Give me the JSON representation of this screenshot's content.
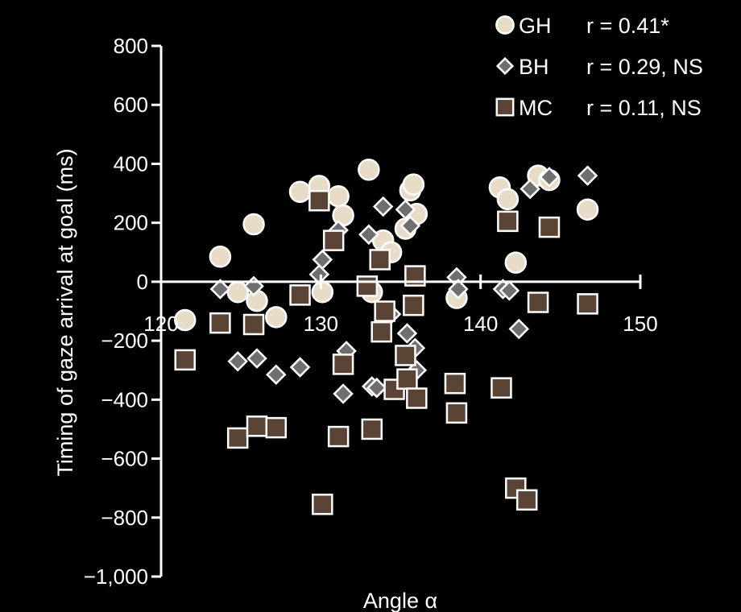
{
  "chart_data": {
    "type": "scatter",
    "xlabel": "Angle α",
    "ylabel": "Timing of gaze arrival at goal (ms)",
    "xlim": [
      120,
      150
    ],
    "ylim": [
      -1000,
      800
    ],
    "x_ticks": [
      120,
      130,
      140,
      150
    ],
    "x_tick_labels": [
      "120",
      "130",
      "140",
      "150"
    ],
    "y_ticks": [
      -1000,
      -800,
      -600,
      -400,
      -200,
      0,
      200,
      400,
      600,
      800
    ],
    "y_tick_labels": [
      "−1,000",
      "−800",
      "−600",
      "−400",
      "−200",
      "0",
      "200",
      "400",
      "600",
      "800"
    ],
    "legend_position": "top-right",
    "series": [
      {
        "name": "GH",
        "marker": "circle",
        "fill": "#e8dcc8",
        "stat": "r = 0.41*",
        "points": [
          [
            121.5,
            -130
          ],
          [
            123.7,
            85
          ],
          [
            124.8,
            -35
          ],
          [
            125.8,
            195
          ],
          [
            126.0,
            -65
          ],
          [
            127.2,
            -120
          ],
          [
            128.7,
            305
          ],
          [
            129.9,
            325
          ],
          [
            130.1,
            -35
          ],
          [
            131.1,
            290
          ],
          [
            131.4,
            225
          ],
          [
            133.0,
            380
          ],
          [
            133.2,
            -35
          ],
          [
            133.9,
            140
          ],
          [
            134.4,
            100
          ],
          [
            135.3,
            180
          ],
          [
            135.6,
            310
          ],
          [
            135.8,
            330
          ],
          [
            136.0,
            230
          ],
          [
            138.5,
            -55
          ],
          [
            141.2,
            320
          ],
          [
            141.7,
            280
          ],
          [
            142.2,
            65
          ],
          [
            143.6,
            360
          ],
          [
            144.3,
            345
          ],
          [
            146.7,
            245
          ]
        ]
      },
      {
        "name": "BH",
        "marker": "diamond",
        "fill": "#6f6f6f",
        "stat": "r = 0.29, NS",
        "points": [
          [
            123.7,
            -25
          ],
          [
            124.8,
            -270
          ],
          [
            125.8,
            -15
          ],
          [
            126.0,
            -260
          ],
          [
            127.2,
            -315
          ],
          [
            128.7,
            -290
          ],
          [
            129.9,
            25
          ],
          [
            130.1,
            75
          ],
          [
            131.1,
            175
          ],
          [
            131.4,
            -380
          ],
          [
            131.6,
            -235
          ],
          [
            133.0,
            160
          ],
          [
            133.2,
            -355
          ],
          [
            133.5,
            -360
          ],
          [
            133.9,
            255
          ],
          [
            134.4,
            -110
          ],
          [
            135.3,
            245
          ],
          [
            135.4,
            -175
          ],
          [
            135.6,
            190
          ],
          [
            135.9,
            -225
          ],
          [
            136.0,
            -300
          ],
          [
            138.5,
            15
          ],
          [
            138.6,
            -25
          ],
          [
            141.4,
            -25
          ],
          [
            141.8,
            -30
          ],
          [
            142.4,
            -160
          ],
          [
            143.1,
            315
          ],
          [
            144.3,
            355
          ],
          [
            146.7,
            360
          ]
        ]
      },
      {
        "name": "MC",
        "marker": "square",
        "fill": "#5a4436",
        "stat": "r = 0.11, NS",
        "points": [
          [
            121.5,
            -265
          ],
          [
            123.7,
            -140
          ],
          [
            124.8,
            -530
          ],
          [
            125.8,
            -145
          ],
          [
            126.0,
            -490
          ],
          [
            127.2,
            -495
          ],
          [
            128.7,
            -45
          ],
          [
            129.9,
            275
          ],
          [
            130.1,
            -755
          ],
          [
            130.8,
            140
          ],
          [
            131.1,
            -525
          ],
          [
            131.4,
            -280
          ],
          [
            132.9,
            -15
          ],
          [
            133.2,
            -500
          ],
          [
            133.7,
            75
          ],
          [
            133.8,
            -170
          ],
          [
            134.0,
            -100
          ],
          [
            134.6,
            -365
          ],
          [
            135.3,
            -250
          ],
          [
            135.4,
            -330
          ],
          [
            135.8,
            -80
          ],
          [
            135.9,
            20
          ],
          [
            136.0,
            -395
          ],
          [
            138.4,
            -345
          ],
          [
            138.5,
            -445
          ],
          [
            141.3,
            -360
          ],
          [
            141.7,
            205
          ],
          [
            142.2,
            -700
          ],
          [
            142.9,
            -740
          ],
          [
            143.6,
            -70
          ],
          [
            144.3,
            185
          ],
          [
            146.7,
            -75
          ]
        ]
      }
    ]
  },
  "colors": {
    "background": "#000000",
    "axis": "#ffffff",
    "marker_stroke": "#ffffff"
  }
}
